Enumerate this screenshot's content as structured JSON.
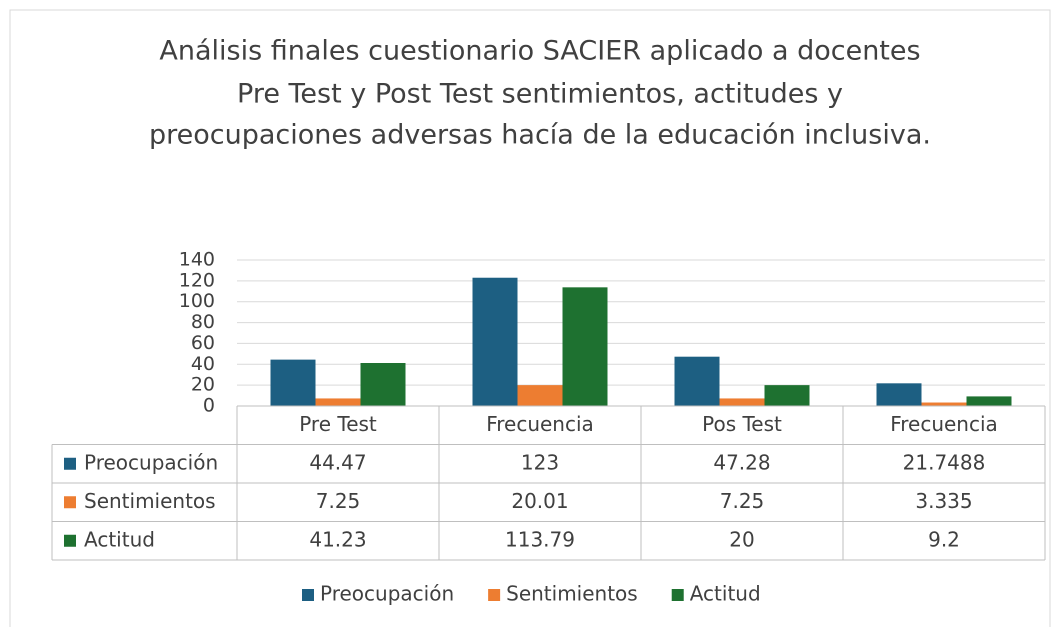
{
  "chart_data": {
    "type": "bar",
    "title": [
      "Análisis finales cuestionario SACIER aplicado a docentes",
      "Pre Test y Post Test sentimientos, actitudes y",
      "preocupaciones adversas hacía de la educación inclusiva."
    ],
    "categories": [
      "Pre Test",
      "Frecuencia",
      "Pos Test",
      "Frecuencia"
    ],
    "series": [
      {
        "name": "Preocupación",
        "color": "#1d5f82",
        "values": [
          44.47,
          123,
          47.28,
          21.7488
        ]
      },
      {
        "name": "Sentimientos",
        "color": "#ed7d31",
        "values": [
          7.25,
          20.01,
          7.25,
          3.335
        ]
      },
      {
        "name": "Actitud",
        "color": "#1e7130",
        "values": [
          41.23,
          113.79,
          20,
          9.2
        ]
      }
    ],
    "ylim": [
      0,
      140
    ],
    "yticks": [
      0,
      20,
      40,
      60,
      80,
      100,
      120,
      140
    ],
    "grid": true,
    "legend": "bottom"
  }
}
